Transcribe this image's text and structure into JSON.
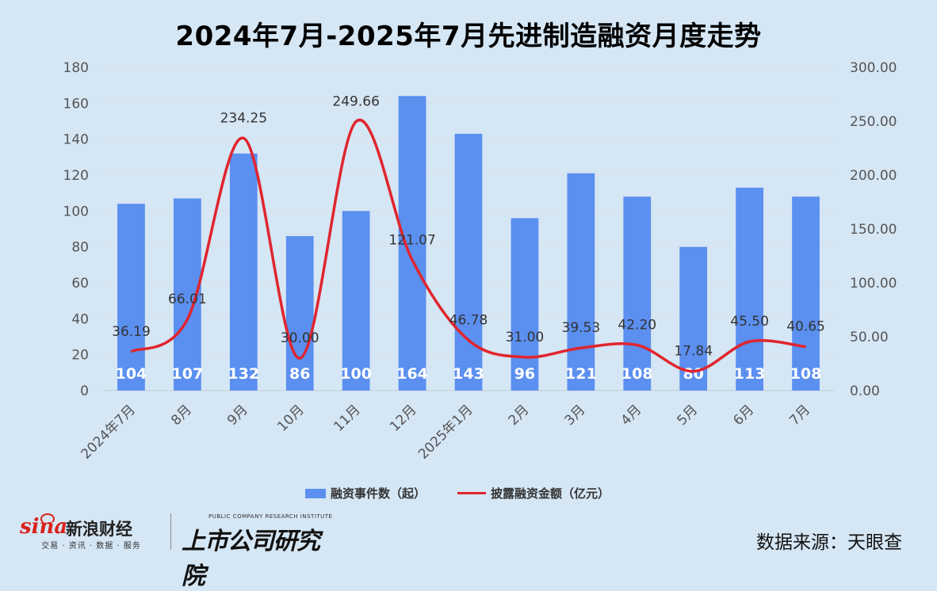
{
  "chart_data": {
    "type": "bar",
    "title": "2024年7月-2025年7月先进制造融资月度走势",
    "categories": [
      "2024年7月",
      "8月",
      "9月",
      "10月",
      "11月",
      "12月",
      "2025年1月",
      "2月",
      "3月",
      "4月",
      "5月",
      "6月",
      "7月"
    ],
    "series": [
      {
        "name": "融资事件数（起）",
        "type": "bar",
        "axis": "left",
        "values": [
          104,
          107,
          132,
          86,
          100,
          164,
          143,
          96,
          121,
          108,
          80,
          113,
          108
        ],
        "color": "#5b8ff0"
      },
      {
        "name": "披露融资金额（亿元）",
        "type": "line",
        "axis": "right",
        "values": [
          36.19,
          66.01,
          234.25,
          30.0,
          249.66,
          121.07,
          46.78,
          31.0,
          39.53,
          42.2,
          17.84,
          45.5,
          40.65
        ],
        "labels": [
          "36.19",
          "66.01",
          "234.25",
          "30.00",
          "249.66",
          "121.07",
          "46.78",
          "31.00",
          "39.53",
          "42.20",
          "17.84",
          "45.50",
          "40.65"
        ],
        "color": "#e0252e"
      }
    ],
    "ylim": [
      0,
      180
    ],
    "yticks": [
      "0",
      "20",
      "40",
      "60",
      "80",
      "100",
      "120",
      "140",
      "160",
      "180"
    ],
    "y2lim": [
      0,
      300
    ],
    "y2ticks": [
      "0.00",
      "50.00",
      "100.00",
      "150.00",
      "200.00",
      "250.00",
      "300.00"
    ],
    "grid": true,
    "legend": "bottom"
  },
  "footer": {
    "sina_logo": "sina",
    "sina_name": "新浪财经",
    "sina_sub": "交易 · 资讯 · 数据 · 服务",
    "institute_en": "PUBLIC COMPANY RESEARCH INSTITUTE",
    "institute_cn": "上市公司研究院",
    "source": "数据来源：天眼查"
  }
}
